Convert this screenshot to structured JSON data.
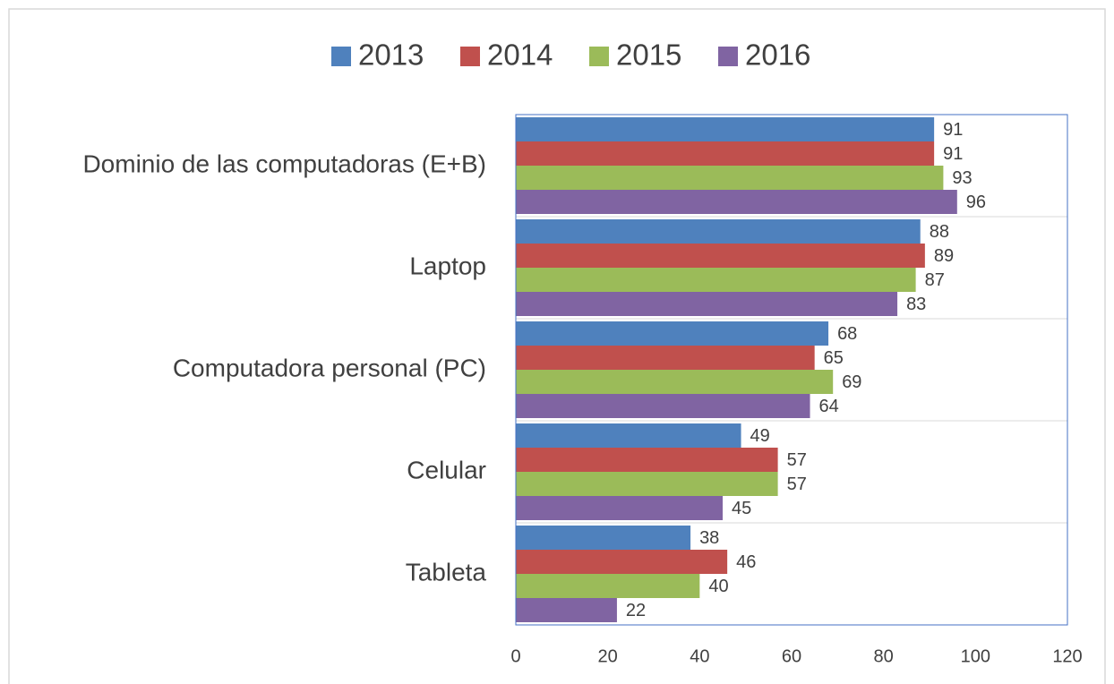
{
  "chart_data": {
    "type": "bar",
    "orientation": "horizontal",
    "categories": [
      "Dominio de las computadoras (E+B)",
      "Laptop",
      "Computadora personal (PC)",
      "Celular",
      "Tableta"
    ],
    "series": [
      {
        "name": "2013",
        "color": "#4f81bd",
        "values": [
          91,
          88,
          68,
          49,
          38
        ]
      },
      {
        "name": "2014",
        "color": "#c0504d",
        "values": [
          91,
          89,
          65,
          57,
          46
        ]
      },
      {
        "name": "2015",
        "color": "#9bbb59",
        "values": [
          93,
          87,
          69,
          57,
          40
        ]
      },
      {
        "name": "2016",
        "color": "#8064a2",
        "values": [
          96,
          83,
          64,
          45,
          22
        ]
      }
    ],
    "xlim": [
      0,
      120
    ],
    "xticks": [
      0,
      20,
      40,
      60,
      80,
      100,
      120
    ],
    "legend": "top"
  }
}
